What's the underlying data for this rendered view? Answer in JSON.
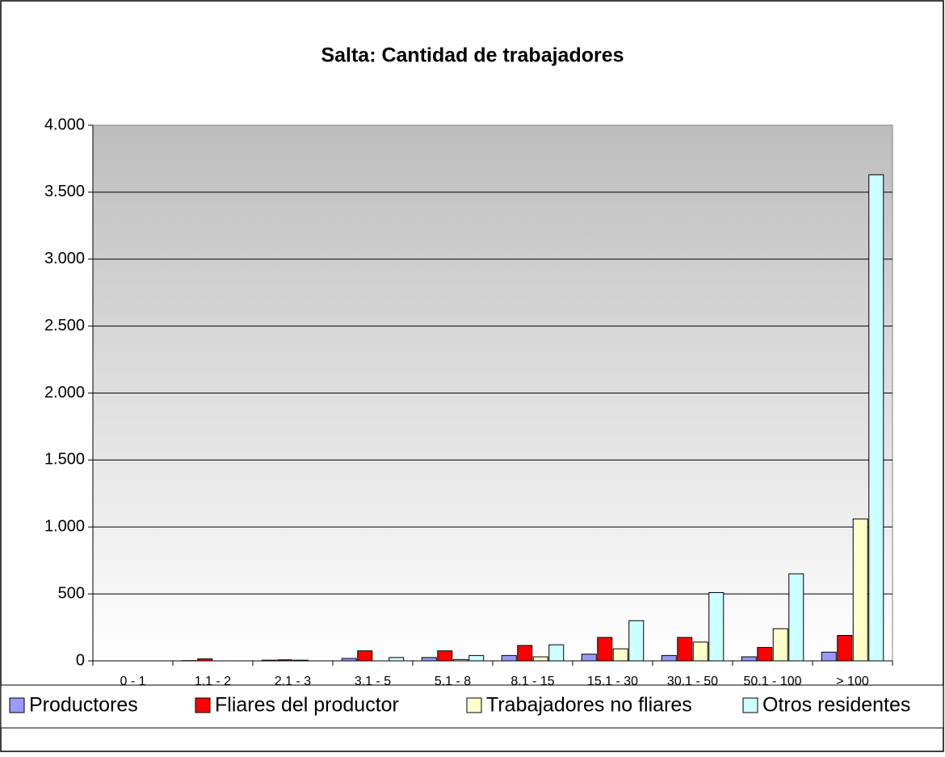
{
  "chart_data": {
    "type": "bar",
    "title": "Salta: Cantidad de trabajadores",
    "categories": [
      "0 - 1",
      "1.1 - 2",
      "2.1 - 3",
      "3.1 - 5",
      "5.1 - 8",
      "8.1 - 15",
      "15.1 - 30",
      "30.1 - 50",
      "50.1 - 100",
      "> 100"
    ],
    "series": [
      {
        "name": "Productores",
        "color": "#9999ff",
        "values": [
          0,
          2,
          5,
          18,
          25,
          40,
          50,
          40,
          30,
          65
        ]
      },
      {
        "name": "Fliares del productor",
        "color": "#ff0000",
        "values": [
          0,
          15,
          8,
          75,
          75,
          115,
          175,
          175,
          100,
          190
        ]
      },
      {
        "name": "Trabajadores no fliares",
        "color": "#ffffcc",
        "values": [
          0,
          0,
          5,
          0,
          10,
          30,
          90,
          140,
          240,
          1060
        ]
      },
      {
        "name": "Otros residentes",
        "color": "#ccffff",
        "values": [
          0,
          0,
          0,
          25,
          40,
          120,
          300,
          510,
          650,
          3630
        ]
      }
    ],
    "ylim": [
      0,
      4000
    ],
    "yticks": [
      0,
      500,
      {
        "value": 1000,
        "label": "1.000"
      },
      {
        "value": 1500,
        "label": "1.500"
      },
      {
        "value": 2000,
        "label": "2.000"
      },
      {
        "value": 2500,
        "label": "2.500"
      },
      {
        "value": 3000,
        "label": "3.000"
      },
      {
        "value": 3500,
        "label": "3.500"
      },
      {
        "value": 4000,
        "label": "4.000"
      }
    ],
    "grid": true,
    "legend": "bottom"
  }
}
